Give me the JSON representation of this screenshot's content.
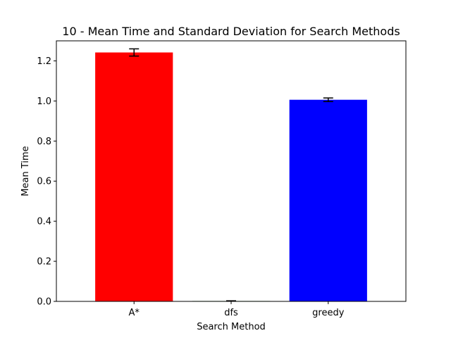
{
  "chart_data": {
    "type": "bar",
    "title": "10 - Mean Time and Standard Deviation for Search Methods",
    "xlabel": "Search Method",
    "ylabel": "Mean Time",
    "categories": [
      "A*",
      "dfs",
      "greedy"
    ],
    "values": [
      1.242,
      0.002,
      1.006
    ],
    "errors": [
      0.018,
      0.001,
      0.009
    ],
    "colors": [
      "#ff0000",
      "#008000",
      "#0000ff"
    ],
    "ylim": [
      0,
      1.3
    ],
    "yticks": [
      0.0,
      0.2,
      0.4,
      0.6,
      0.8,
      1.0,
      1.2
    ],
    "ytick_labels": [
      "0.0",
      "0.2",
      "0.4",
      "0.6",
      "0.8",
      "1.0",
      "1.2"
    ],
    "grid": false,
    "legend": "none"
  }
}
